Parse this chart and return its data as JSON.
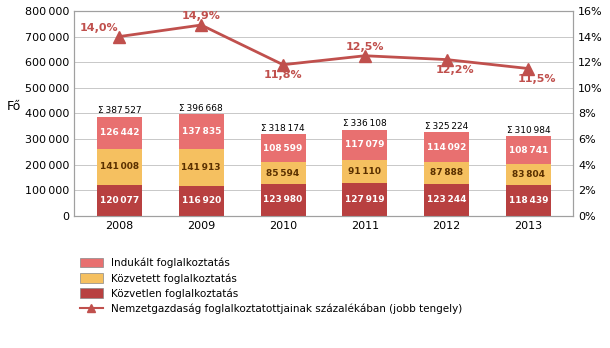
{
  "years": [
    2008,
    2009,
    2010,
    2011,
    2012,
    2013
  ],
  "bottom_values": [
    120077,
    116920,
    123980,
    127919,
    123244,
    118439
  ],
  "middle_values": [
    141008,
    141913,
    85594,
    91110,
    87888,
    83804
  ],
  "top_values": [
    126442,
    137835,
    108599,
    117079,
    114092,
    108741
  ],
  "totals": [
    387527,
    396668,
    318174,
    336108,
    325224,
    310984
  ],
  "line_values": [
    14.0,
    14.9,
    11.8,
    12.5,
    12.2,
    11.5
  ],
  "line_labels": [
    "14,0%",
    "14,9%",
    "11,8%",
    "12,5%",
    "12,2%",
    "11,5%"
  ],
  "bottom_color": "#B84040",
  "middle_color": "#F5C060",
  "top_color": "#E87070",
  "line_color": "#C0504D",
  "ylabel_left": "Fő",
  "ylim_left": [
    0,
    800000
  ],
  "ylim_right": [
    0,
    16
  ],
  "yticks_left": [
    0,
    100000,
    200000,
    300000,
    400000,
    500000,
    600000,
    700000,
    800000
  ],
  "yticks_right": [
    0,
    2,
    4,
    6,
    8,
    10,
    12,
    14,
    16
  ],
  "legend_labels": [
    "Indukált foglalkoztatás",
    "Közvetett foglalkoztatás",
    "Közvetlen foglalkoztatás",
    "Nemzetgazdaság foglalkoztatottjainak százalékában (jobb tengely)"
  ],
  "background_color": "#FFFFFF",
  "plot_bg_color": "#FFFFFF",
  "grid_color": "#C8C8C8",
  "bar_width": 0.55,
  "label_offset_x": [
    -0.25,
    0.0,
    0.0,
    0.0,
    0.1,
    0.1
  ],
  "label_offset_y": [
    0.3,
    0.35,
    -0.45,
    0.3,
    -0.4,
    -0.4
  ]
}
